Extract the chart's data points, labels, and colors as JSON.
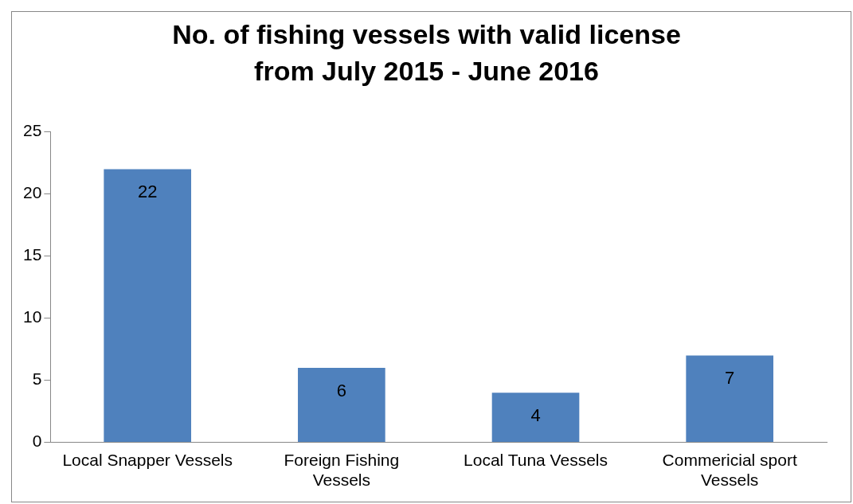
{
  "chart_data": {
    "type": "bar",
    "title": "No. of fishing vessels with valid license from July 2015 - June 2016",
    "categories": [
      "Local Snapper Vessels",
      "Foreign Fishing Vessels",
      "Local Tuna Vessels",
      "Commericial sport Vessels"
    ],
    "values": [
      22,
      6,
      4,
      7
    ],
    "color": "#4f81bd",
    "ylim": [
      0,
      25
    ],
    "yticks": [
      0,
      5,
      10,
      15,
      20,
      25
    ],
    "grid": false,
    "legend": false,
    "data_labels": true
  }
}
